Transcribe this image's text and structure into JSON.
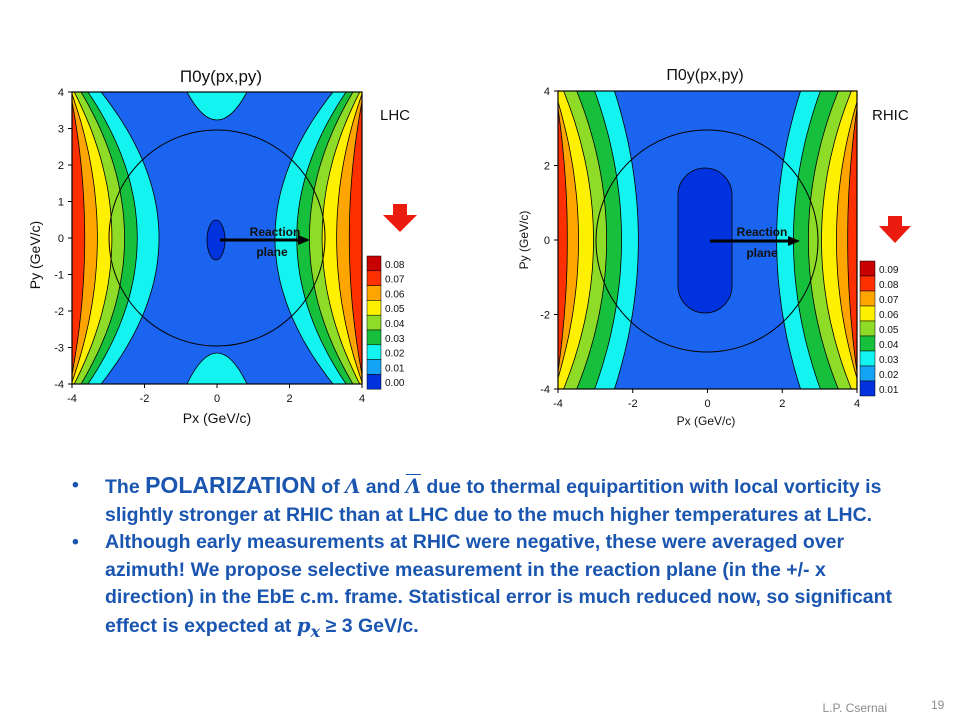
{
  "colors": {
    "levels": [
      "#0033dd",
      "#1a64ef",
      "#14a3f5",
      "#13f4f1",
      "#17c03c",
      "#8edc28",
      "#fff000",
      "#ffa500",
      "#ff3000",
      "#c80000"
    ],
    "text_blue": "#1a55b0",
    "arrow_red": "#ea1c10"
  },
  "chart_data": [
    {
      "type": "heatmap",
      "title": "Π0y(px,py)",
      "xlabel": "Px (GeV/c)",
      "ylabel": "Py (GeV/c)",
      "xlim": [
        -4,
        4
      ],
      "ylim": [
        -4,
        4
      ],
      "x_ticks": [
        "-4",
        "-2",
        "0",
        "2",
        "4"
      ],
      "y_ticks": [
        "4",
        "3",
        "2",
        "1",
        "0",
        "-1",
        "-2",
        "-3",
        "-4"
      ],
      "colorbar_levels": [
        "0.08",
        "0.07",
        "0.06",
        "0.05",
        "0.04",
        "0.03",
        "0.02",
        "0.01",
        "0.00"
      ],
      "annotation": [
        "Reaction",
        "plane"
      ],
      "side_label": "LHC"
    },
    {
      "type": "heatmap",
      "title": "Π0y(px,py)",
      "xlabel": "Px (GeV/c)",
      "ylabel": "Py (GeV/c)",
      "xlim": [
        -4,
        4
      ],
      "ylim": [
        -4,
        4
      ],
      "x_ticks": [
        "-4",
        "-2",
        "0",
        "2",
        "4"
      ],
      "y_ticks": [
        "4",
        "2",
        "0",
        "-2",
        "-4"
      ],
      "colorbar_levels": [
        "0.09",
        "0.08",
        "0.07",
        "0.06",
        "0.05",
        "0.04",
        "0.03",
        "0.02",
        "0.01"
      ],
      "annotation": [
        "Reaction",
        "plane"
      ],
      "side_label": "RHIC"
    }
  ],
  "bullets": {
    "b1": {
      "p1": "The ",
      "big": "POLARIZATION",
      "p2": " of ",
      "lambda": "Λ",
      "and": " and ",
      "lambda_bar": "Λ",
      "p3": "  due to thermal equipartition with local vorticity is slightly stronger at RHIC than at LHC due to the much higher temperatures at LHC."
    },
    "b2": {
      "text": "Although early measurements at RHIC were negative, these were averaged over azimuth! We propose selective measurement in the reaction plane (in the +/- x direction) in the EbE c.m. frame. Statistical error is much reduced now, so significant effect is expected at ",
      "px": "p",
      "px_sub": "x",
      "tail": " ≥ 3 GeV/c."
    }
  },
  "footer": {
    "author": "L.P. Csernai",
    "page": "19"
  }
}
